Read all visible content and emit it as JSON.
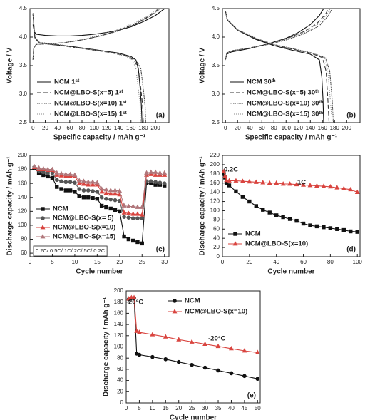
{
  "chart_data": [
    {
      "type": "line",
      "label": "(a)",
      "xlabel": "Specific capacity / mAh g⁻¹",
      "ylabel": "Voltage / V",
      "xlim": [
        -5,
        222
      ],
      "ylim": [
        2.5,
        4.5
      ],
      "xticks": [
        0,
        20,
        40,
        60,
        80,
        100,
        120,
        140,
        160,
        180,
        200
      ],
      "yticks": [
        2.5,
        {
          "value": 3,
          "label": "3.0"
        },
        3.5,
        {
          "value": 4,
          "label": "4.0"
        },
        4.5
      ],
      "legend": "lower left",
      "series": [
        {
          "name": "NCM 1ˢᵗ",
          "color": "#111111",
          "dash": "solid",
          "x": [
            0,
            2,
            5,
            20,
            40,
            60,
            80,
            100,
            120,
            140,
            160,
            180,
            200,
            215,
            null,
            0,
            3,
            10,
            30,
            60,
            100,
            140,
            160,
            168,
            172,
            175,
            177,
            178
          ],
          "values": [
            4.22,
            4.1,
            4.05,
            4.03,
            4.02,
            4.02,
            4.03,
            4.05,
            4.08,
            4.12,
            4.18,
            4.27,
            4.38,
            4.5,
            null,
            4.4,
            4.0,
            3.9,
            3.87,
            3.84,
            3.78,
            3.72,
            3.66,
            3.6,
            3.45,
            3.1,
            2.8,
            2.5
          ]
        },
        {
          "name": "NCM@LBO-S(x=5) 1ˢᵗ",
          "color": "#333333",
          "dash": "dashed",
          "x": [
            0,
            1,
            5,
            20,
            50,
            80,
            110,
            140,
            170,
            190,
            206,
            null,
            0,
            3,
            10,
            40,
            80,
            120,
            150,
            165,
            172,
            176,
            179,
            180
          ],
          "values": [
            3.6,
            3.8,
            3.87,
            3.88,
            3.9,
            3.95,
            4.02,
            4.12,
            4.25,
            4.37,
            4.5,
            null,
            4.4,
            3.98,
            3.9,
            3.86,
            3.8,
            3.74,
            3.68,
            3.6,
            3.45,
            3.1,
            2.8,
            2.5
          ]
        },
        {
          "name": "NCM@LBO-S(x=10) 1ˢᵗ",
          "color": "#444444",
          "dash": "dense",
          "x": [
            0,
            1,
            5,
            20,
            50,
            80,
            110,
            140,
            170,
            190,
            208,
            null,
            0,
            3,
            10,
            40,
            80,
            120,
            150,
            168,
            176,
            180,
            183,
            184
          ],
          "values": [
            3.6,
            3.8,
            3.87,
            3.88,
            3.9,
            3.95,
            4.02,
            4.11,
            4.24,
            4.36,
            4.5,
            null,
            4.42,
            4.0,
            3.91,
            3.87,
            3.81,
            3.75,
            3.69,
            3.6,
            3.45,
            3.1,
            2.8,
            2.5
          ]
        },
        {
          "name": "NCM@LBO-S(x=15) 1ˢᵗ",
          "color": "#888888",
          "dash": "dotted",
          "x": [
            0,
            1,
            5,
            20,
            50,
            80,
            110,
            140,
            170,
            190,
            204,
            null,
            0,
            3,
            10,
            40,
            80,
            120,
            150,
            162,
            168,
            172,
            175,
            176
          ],
          "values": [
            3.6,
            3.8,
            3.87,
            3.88,
            3.9,
            3.96,
            4.04,
            4.14,
            4.27,
            4.39,
            4.5,
            null,
            4.4,
            3.98,
            3.9,
            3.86,
            3.8,
            3.74,
            3.67,
            3.6,
            3.45,
            3.1,
            2.8,
            2.5
          ]
        }
      ]
    },
    {
      "type": "line",
      "label": "(b)",
      "xlabel": "Specific capacity / mAh g⁻¹",
      "ylabel": "Voltage / V",
      "xlim": [
        -5,
        222
      ],
      "ylim": [
        2.5,
        4.5
      ],
      "xticks": [
        0,
        20,
        40,
        60,
        80,
        100,
        120,
        140,
        160,
        180,
        200
      ],
      "yticks": [
        2.5,
        {
          "value": 3,
          "label": "3.0"
        },
        3.5,
        {
          "value": 4,
          "label": "4.0"
        },
        4.5
      ],
      "legend": "lower left",
      "series": [
        {
          "name": "NCM 30ᵗʰ",
          "color": "#111111",
          "dash": "solid",
          "x": [
            0,
            2,
            10,
            40,
            70,
            100,
            120,
            140,
            155,
            162,
            null,
            0,
            3,
            20,
            50,
            80,
            110,
            140,
            155,
            159,
            161,
            162
          ],
          "values": [
            3.6,
            3.7,
            3.74,
            3.8,
            3.88,
            3.98,
            4.08,
            4.22,
            4.38,
            4.5,
            null,
            4.45,
            4.3,
            4.12,
            3.96,
            3.85,
            3.77,
            3.7,
            3.6,
            3.3,
            2.9,
            2.5
          ]
        },
        {
          "name": "NCM@LBO-S(x=5) 30ᵗʰ",
          "color": "#333333",
          "dash": "dashed",
          "x": [
            0,
            2,
            10,
            40,
            70,
            100,
            130,
            150,
            165,
            170,
            null,
            0,
            3,
            20,
            50,
            80,
            110,
            140,
            160,
            166,
            169,
            171
          ],
          "values": [
            3.6,
            3.72,
            3.76,
            3.81,
            3.88,
            3.97,
            4.1,
            4.23,
            4.4,
            4.5,
            null,
            4.45,
            4.3,
            4.12,
            3.97,
            3.86,
            3.79,
            3.72,
            3.64,
            3.4,
            2.9,
            2.5
          ]
        },
        {
          "name": "NCM@LBO-S(x=10) 30ᵗʰ",
          "color": "#444444",
          "dash": "dense",
          "x": [
            0,
            2,
            10,
            40,
            70,
            100,
            130,
            155,
            170,
            176,
            null,
            0,
            3,
            20,
            50,
            80,
            110,
            140,
            165,
            172,
            176,
            178
          ],
          "values": [
            3.6,
            3.72,
            3.76,
            3.81,
            3.87,
            3.95,
            4.06,
            4.2,
            4.38,
            4.5,
            null,
            4.46,
            4.31,
            4.13,
            3.98,
            3.87,
            3.8,
            3.73,
            3.64,
            3.4,
            2.9,
            2.5
          ]
        },
        {
          "name": "NCM@LBO-S(x=15) 30ᵗʰ",
          "color": "#888888",
          "dash": "dotted",
          "x": [
            0,
            2,
            10,
            40,
            70,
            100,
            130,
            152,
            167,
            173,
            null,
            0,
            3,
            20,
            50,
            80,
            110,
            140,
            163,
            169,
            173,
            176
          ],
          "values": [
            3.6,
            3.72,
            3.76,
            3.81,
            3.87,
            3.96,
            4.08,
            4.22,
            4.39,
            4.5,
            null,
            4.46,
            4.31,
            4.13,
            3.98,
            3.87,
            3.8,
            3.73,
            3.64,
            3.4,
            2.9,
            2.5
          ]
        }
      ]
    },
    {
      "type": "line",
      "label": "(c)",
      "xlabel": "Cycle number",
      "ylabel": "Discharge capacity / mAh g⁻¹",
      "xlim": [
        0,
        31
      ],
      "ylim": [
        55,
        200
      ],
      "xticks": [
        0,
        5,
        10,
        15,
        20,
        25,
        30
      ],
      "yticks": [
        60,
        80,
        100,
        120,
        140,
        160,
        180,
        200
      ],
      "legend": "lower left",
      "annotations": [
        "0.2C/ 0.5C/ 1C/ 2C/ 5C/ 0.2C"
      ],
      "x": [
        1,
        2,
        3,
        4,
        5,
        6,
        7,
        8,
        9,
        10,
        11,
        12,
        13,
        14,
        15,
        16,
        17,
        18,
        19,
        20,
        21,
        22,
        23,
        24,
        25,
        26,
        27,
        28,
        29,
        30
      ],
      "series": [
        {
          "name": "NCM",
          "color": "#111111",
          "dash": "solid",
          "marker": "square",
          "values": [
            182,
            175,
            172,
            170,
            168,
            155,
            152,
            150,
            150,
            148,
            142,
            140,
            140,
            139,
            138,
            128,
            126,
            124,
            122,
            120,
            84,
            80,
            78,
            76,
            74,
            160,
            160,
            158,
            158,
            157
          ]
        },
        {
          "name": "NCM@LBO-S(x= 5)",
          "color": "#555555",
          "dash": "solid",
          "marker": "circle",
          "values": [
            183,
            178,
            176,
            175,
            175,
            165,
            163,
            162,
            162,
            161,
            152,
            150,
            150,
            149,
            148,
            140,
            138,
            137,
            136,
            135,
            112,
            111,
            110,
            110,
            110,
            163,
            163,
            162,
            161,
            160
          ]
        },
        {
          "name": "NCM@LBO-S(x=10)",
          "color": "#d9443f",
          "dash": "solid",
          "marker": "triangle",
          "values": [
            183,
            180,
            180,
            179,
            179,
            172,
            171,
            170,
            170,
            170,
            160,
            159,
            158,
            158,
            158,
            148,
            146,
            145,
            145,
            144,
            118,
            117,
            116,
            116,
            115,
            172,
            173,
            172,
            172,
            172
          ]
        },
        {
          "name": "NCM@LBO-S(x=15)",
          "color": "#b0767a",
          "dash": "solid",
          "marker": "triangle",
          "values": [
            184,
            182,
            181,
            180,
            180,
            175,
            174,
            173,
            173,
            172,
            164,
            163,
            162,
            162,
            161,
            152,
            151,
            150,
            150,
            149,
            128,
            127,
            127,
            126,
            126,
            175,
            176,
            176,
            175,
            175
          ]
        }
      ]
    },
    {
      "type": "line",
      "label": "(d)",
      "xlabel": "Cycle number",
      "ylabel": "Discharge capacity / mAh g⁻¹",
      "xlim": [
        0,
        102
      ],
      "ylim": [
        0,
        220
      ],
      "xticks": [
        0,
        20,
        40,
        60,
        80,
        100
      ],
      "yticks": [
        0,
        20,
        40,
        60,
        80,
        100,
        120,
        140,
        160,
        180,
        200,
        220
      ],
      "legend": "lower left",
      "annotations": [
        "0.2C",
        "1C"
      ],
      "x": [
        1,
        2,
        3,
        5,
        10,
        15,
        20,
        25,
        30,
        35,
        40,
        45,
        50,
        55,
        60,
        65,
        70,
        75,
        80,
        85,
        90,
        95,
        100
      ],
      "series": [
        {
          "name": "NCM",
          "color": "#111111",
          "dash": "solid",
          "marker": "square",
          "values": [
            180,
            172,
            160,
            155,
            142,
            130,
            120,
            110,
            102,
            96,
            90,
            86,
            82,
            78,
            72,
            68,
            66,
            64,
            62,
            60,
            58,
            55,
            54
          ]
        },
        {
          "name": "NCM@LBO-S(x=10)",
          "color": "#d9443f",
          "dash": "solid",
          "marker": "triangle",
          "values": [
            185,
            175,
            166,
            165,
            165,
            164,
            163,
            162,
            161,
            160,
            160,
            158,
            158,
            157,
            156,
            155,
            154,
            153,
            152,
            150,
            148,
            146,
            140
          ]
        }
      ]
    },
    {
      "type": "line",
      "label": "(e)",
      "xlabel": "Cycle number",
      "ylabel": "Discharge capacity / mAh g⁻¹",
      "xlim": [
        0,
        51
      ],
      "ylim": [
        0,
        200
      ],
      "xticks": [
        0,
        5,
        10,
        15,
        20,
        25,
        30,
        35,
        40,
        45,
        50
      ],
      "yticks": [
        0,
        20,
        40,
        60,
        80,
        100,
        120,
        140,
        160,
        180,
        200
      ],
      "legend": "upper left",
      "annotations": [
        "20°C",
        "-20°C"
      ],
      "x": [
        1,
        2,
        3,
        4,
        5,
        10,
        15,
        20,
        25,
        30,
        35,
        40,
        45,
        50
      ],
      "series": [
        {
          "name": "NCM",
          "color": "#111111",
          "dash": "solid",
          "marker": "circle",
          "values": [
            185,
            187,
            187,
            88,
            86,
            82,
            78,
            73,
            68,
            63,
            58,
            53,
            48,
            43
          ]
        },
        {
          "name": "NCM@LBO-S(x=10)",
          "color": "#d9443f",
          "dash": "solid",
          "marker": "triangle",
          "values": [
            186,
            188,
            188,
            128,
            126,
            122,
            118,
            113,
            109,
            105,
            101,
            97,
            93,
            90
          ]
        }
      ]
    }
  ]
}
